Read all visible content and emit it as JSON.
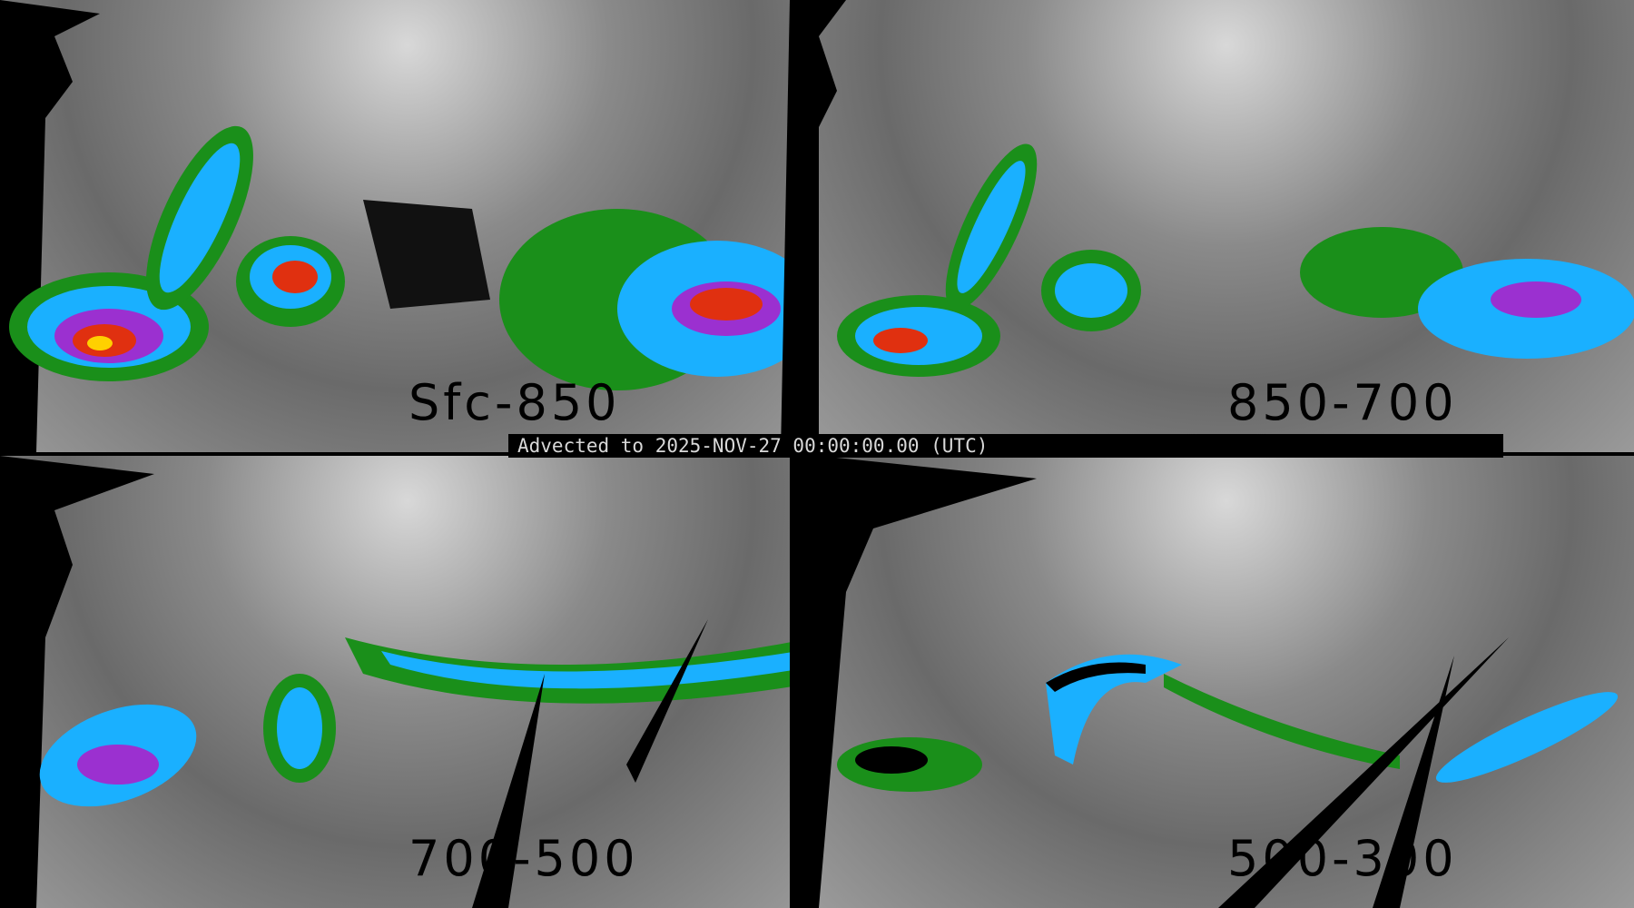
{
  "banner": {
    "text": "Advected to 2025-NOV-27 00:00:00.00 (UTC)"
  },
  "panels": [
    {
      "label": "Sfc-850"
    },
    {
      "label": "850-700"
    },
    {
      "label": "700-500"
    },
    {
      "label": "500-300"
    }
  ],
  "colors": {
    "low": "#1a8f1a",
    "mid": "#1ab0ff",
    "high": "#9b30d0",
    "peak": "#e03010",
    "max": "#ffd000"
  }
}
